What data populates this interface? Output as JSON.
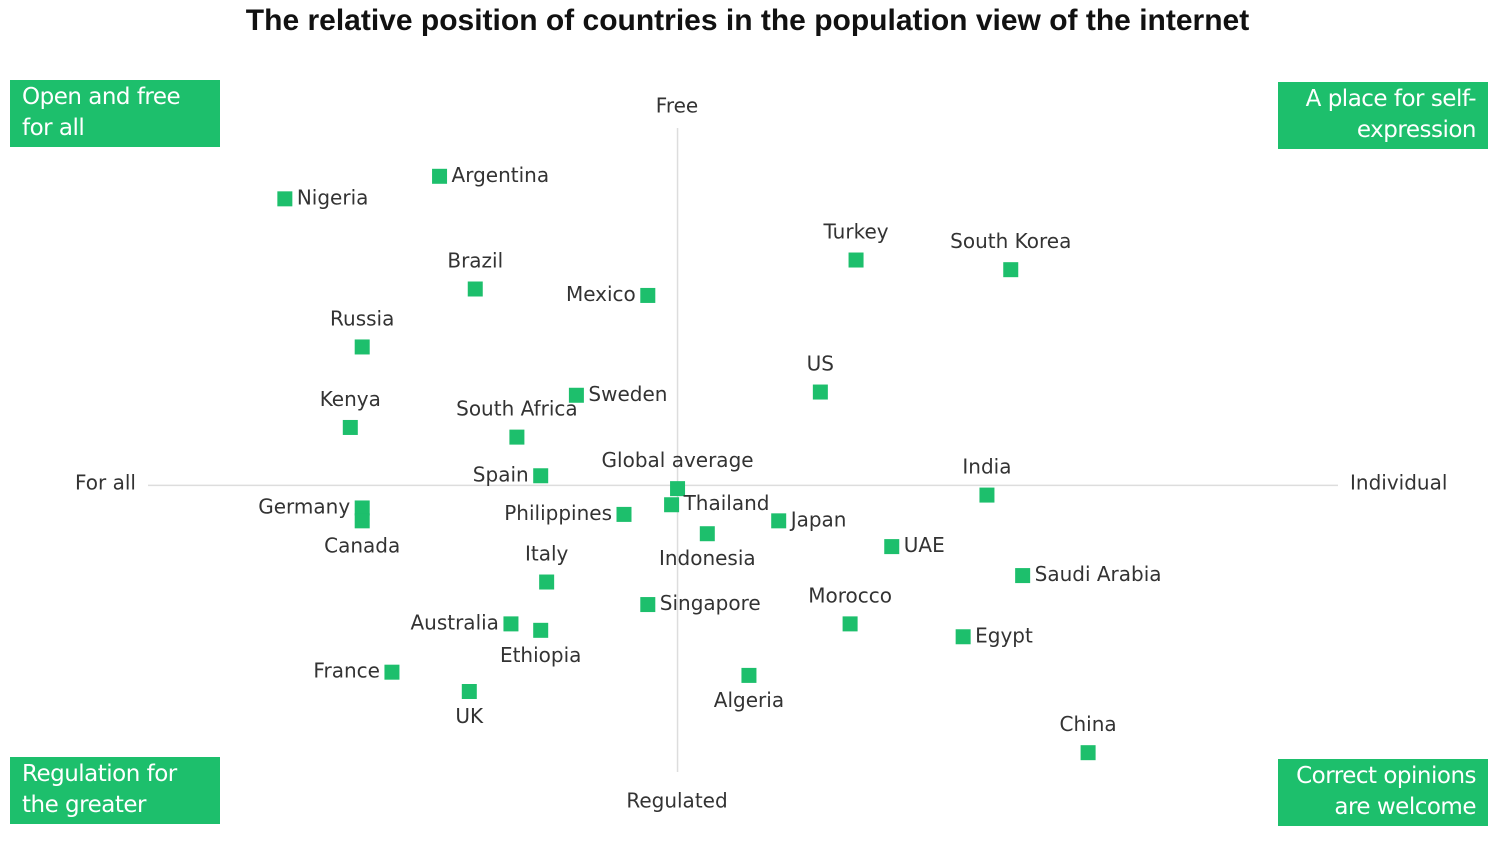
{
  "chart_data": {
    "type": "scatter",
    "title": "The relative position of countries in the population view of the internet",
    "axis_labels": {
      "top": "Free",
      "bottom": "Regulated",
      "left": "For all",
      "right": "Individual"
    },
    "quadrant_labels": {
      "top_left": "Open and free for all",
      "top_right": "A place for self-expression",
      "bottom_left": "Regulation for the greater good",
      "bottom_right": "Correct opinions are welcome"
    },
    "color": "#1dbf6c",
    "xlim": [
      -89,
      111
    ],
    "ylim": [
      -89,
      111
    ],
    "points": [
      "Argentina",
      "Nigeria",
      "Brazil",
      "Mexico",
      "Russia",
      "Kenya",
      "South Africa",
      "Sweden",
      "Turkey",
      "South Korea",
      "US",
      "Spain",
      "Global average",
      "Thailand",
      "Germany",
      "Canada",
      "Philippines",
      "Indonesia",
      "Japan",
      "UAE",
      "India",
      "Saudi Arabia",
      "Italy",
      "Singapore",
      "Morocco",
      "Egypt",
      "Australia",
      "Ethiopia",
      "France",
      "UK",
      "Algeria",
      "China"
    ],
    "x": [
      -40,
      -66,
      -34,
      -5,
      -53,
      -55,
      -27,
      -17,
      30,
      56,
      24,
      -23,
      0,
      -1,
      -53,
      -53,
      -9,
      5,
      17,
      36,
      52,
      58,
      -22,
      -5,
      29,
      48,
      -28,
      -23,
      -48,
      -35,
      12,
      69
    ],
    "y": [
      96,
      89,
      61,
      59,
      43,
      18,
      15,
      28,
      70,
      67,
      29,
      3,
      -1,
      -6,
      -7,
      -11,
      -9,
      -15,
      -11,
      -19,
      -3,
      -28,
      -30,
      -37,
      -43,
      -47,
      -43,
      -45,
      -58,
      -64,
      -59,
      -83
    ]
  }
}
